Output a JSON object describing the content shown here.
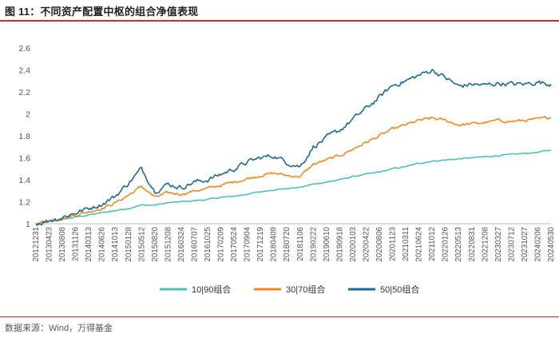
{
  "header": {
    "title": "图 11：不同资产配置中枢的组合净值表现"
  },
  "footer": {
    "source": "数据来源：Wind，万得基金"
  },
  "colors": {
    "s10_90": "#4fc0b4",
    "s30_70": "#ef8a1f",
    "s50_50": "#1f6a94",
    "rule": "#c9302c"
  },
  "chart_data": {
    "type": "line",
    "title": "图 11：不同资产配置中枢的组合净值表现",
    "xlabel": "",
    "ylabel": "",
    "ylim": [
      1,
      2.6
    ],
    "yticks": [
      "1",
      "1.2",
      "1.4",
      "1.6",
      "1.8",
      "2",
      "2.2",
      "2.4",
      "2.6"
    ],
    "ytick_values": [
      1,
      1.2,
      1.4,
      1.6,
      1.8,
      2,
      2.2,
      2.4,
      2.6
    ],
    "grid": false,
    "legend_position": "bottom",
    "categories": [
      "20121231",
      "20130423",
      "20130808",
      "20131126",
      "20140313",
      "20140626",
      "20141013",
      "20150128",
      "20150512",
      "20150820",
      "20151208",
      "20160324",
      "20160707",
      "20161025",
      "20170209",
      "20170524",
      "20170904",
      "20171219",
      "20180409",
      "20180720",
      "20181106",
      "20190222",
      "20190610",
      "20190918",
      "20200103",
      "20200422",
      "20200806",
      "20201123",
      "20210311",
      "20210624",
      "20211012",
      "20220126",
      "20220513",
      "20220831",
      "20221208",
      "20230327",
      "20230712",
      "20231027",
      "20240206",
      "20240530"
    ],
    "series": [
      {
        "name": "10|90组合",
        "color": "#4fc0b4",
        "values": [
          1.0,
          1.02,
          1.04,
          1.06,
          1.08,
          1.1,
          1.12,
          1.14,
          1.17,
          1.17,
          1.19,
          1.2,
          1.21,
          1.22,
          1.24,
          1.25,
          1.27,
          1.29,
          1.31,
          1.32,
          1.33,
          1.36,
          1.38,
          1.4,
          1.43,
          1.45,
          1.47,
          1.5,
          1.52,
          1.55,
          1.57,
          1.58,
          1.59,
          1.6,
          1.61,
          1.62,
          1.63,
          1.64,
          1.65,
          1.67
        ]
      },
      {
        "name": "30|70组合",
        "color": "#ef8a1f",
        "values": [
          1.0,
          1.03,
          1.05,
          1.08,
          1.11,
          1.14,
          1.19,
          1.26,
          1.34,
          1.24,
          1.28,
          1.27,
          1.3,
          1.32,
          1.35,
          1.38,
          1.41,
          1.44,
          1.46,
          1.44,
          1.43,
          1.54,
          1.58,
          1.62,
          1.68,
          1.74,
          1.8,
          1.86,
          1.9,
          1.94,
          1.96,
          1.94,
          1.9,
          1.91,
          1.92,
          1.94,
          1.93,
          1.94,
          1.95,
          1.97
        ]
      },
      {
        "name": "50|50组合",
        "color": "#1f6a94",
        "values": [
          1.0,
          1.03,
          1.06,
          1.1,
          1.14,
          1.18,
          1.25,
          1.37,
          1.5,
          1.3,
          1.36,
          1.33,
          1.38,
          1.4,
          1.45,
          1.5,
          1.56,
          1.6,
          1.62,
          1.56,
          1.52,
          1.7,
          1.78,
          1.85,
          1.95,
          2.05,
          2.15,
          2.26,
          2.3,
          2.35,
          2.4,
          2.33,
          2.25,
          2.27,
          2.26,
          2.28,
          2.27,
          2.27,
          2.29,
          2.27
        ]
      }
    ]
  }
}
